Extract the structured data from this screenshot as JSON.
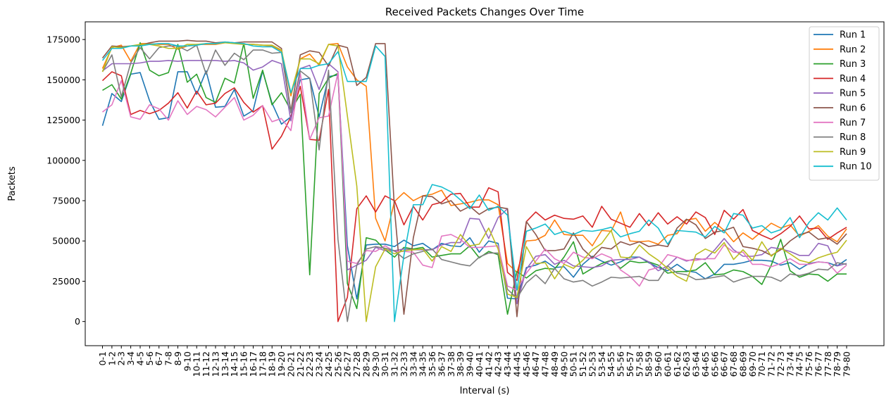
{
  "chart_data": {
    "type": "line",
    "title": "Received Packets Changes Over Time",
    "xlabel": "Interval (s)",
    "ylabel": "Packets",
    "ylim": [
      -15000,
      186000
    ],
    "yticks": [
      0,
      25000,
      50000,
      75000,
      100000,
      125000,
      150000,
      175000
    ],
    "grid": false,
    "legend_position": "top-right",
    "categories": [
      "0-1",
      "1-2",
      "2-3",
      "3-4",
      "4-5",
      "5-6",
      "6-7",
      "7-8",
      "8-9",
      "9-10",
      "10-11",
      "11-12",
      "12-13",
      "13-14",
      "14-15",
      "15-16",
      "16-17",
      "17-18",
      "18-19",
      "19-20",
      "20-21",
      "21-22",
      "22-23",
      "23-24",
      "24-25",
      "25-26",
      "26-27",
      "27-28",
      "28-29",
      "29-30",
      "30-31",
      "31-32",
      "32-33",
      "33-34",
      "34-35",
      "35-36",
      "36-37",
      "37-38",
      "38-39",
      "39-40",
      "40-41",
      "41-42",
      "42-43",
      "43-44",
      "44-45",
      "45-46",
      "46-47",
      "47-48",
      "48-49",
      "49-50",
      "50-51",
      "51-52",
      "52-53",
      "53-54",
      "54-55",
      "55-56",
      "56-57",
      "57-58",
      "58-59",
      "59-60",
      "60-61",
      "61-62",
      "62-63",
      "63-64",
      "64-65",
      "65-66",
      "66-67",
      "67-68",
      "68-69",
      "69-70",
      "70-71",
      "71-72",
      "72-73",
      "73-74",
      "74-75",
      "75-76",
      "76-77",
      "77-78",
      "78-79",
      "79-80"
    ],
    "series": [
      {
        "name": "Run 1",
        "color": "#1f77b4",
        "values": [
          121500,
          141500,
          136500,
          153500,
          154500,
          137000,
          125500,
          126500,
          155000,
          155000,
          141000,
          155500,
          133000,
          133500,
          144000,
          127500,
          131000,
          155500,
          135500,
          122500,
          127000,
          150000,
          151000,
          127000,
          152000,
          153000,
          47000,
          14000,
          47500,
          48000,
          48000,
          46500,
          50500,
          47000,
          48500,
          44500,
          48500,
          47000,
          46500,
          52000,
          43000,
          50000,
          48500,
          14500,
          14000,
          33500,
          35000,
          37500,
          33500,
          34000,
          27500,
          35500,
          40500,
          37500,
          35000,
          37000,
          40000,
          40000,
          36500,
          33500,
          31500,
          35500,
          31500,
          30500,
          26500,
          29500,
          35500,
          35500,
          36500,
          38000,
          38000,
          37500,
          35000,
          36500,
          32500,
          36000,
          37000,
          36500,
          34500,
          38500
        ]
      },
      {
        "name": "Run 2",
        "color": "#ff7f0e",
        "values": [
          157000,
          170000,
          171500,
          161500,
          172500,
          172500,
          172000,
          172000,
          169000,
          171000,
          172000,
          172000,
          172000,
          173000,
          173000,
          172000,
          172000,
          171500,
          171000,
          168000,
          140000,
          163000,
          166000,
          159000,
          172000,
          172500,
          158000,
          150000,
          146000,
          64000,
          50000,
          74500,
          80000,
          75000,
          78000,
          79000,
          81500,
          72000,
          73000,
          74000,
          75500,
          75500,
          72500,
          36000,
          30500,
          50000,
          50500,
          53500,
          63000,
          54000,
          53500,
          53500,
          47000,
          56500,
          56000,
          68000,
          50000,
          49500,
          50000,
          48000,
          53500,
          54500,
          63000,
          64000,
          56000,
          61500,
          56500,
          49500,
          55000,
          51000,
          56000,
          61000,
          58000,
          60000,
          53000,
          56000,
          59500,
          53000,
          49500,
          57500
        ]
      },
      {
        "name": "Run 3",
        "color": "#2ca02c",
        "values": [
          143500,
          147000,
          138000,
          154000,
          173000,
          156000,
          152500,
          154500,
          172000,
          148500,
          153500,
          139000,
          136000,
          151000,
          148000,
          172500,
          138500,
          156000,
          134500,
          142000,
          131000,
          141000,
          29000,
          141500,
          151000,
          154000,
          23500,
          8000,
          52000,
          50500,
          44500,
          40000,
          46000,
          45000,
          46000,
          40000,
          41000,
          42000,
          42000,
          47000,
          39500,
          43500,
          41500,
          4500,
          31000,
          27000,
          31500,
          33000,
          32500,
          40000,
          49500,
          29500,
          33000,
          36000,
          38000,
          33000,
          37500,
          36500,
          37000,
          35000,
          30000,
          31000,
          31000,
          32000,
          36500,
          29000,
          29500,
          32000,
          31000,
          28000,
          23000,
          35000,
          51000,
          31500,
          27500,
          29500,
          29000,
          25000,
          29500,
          29500
        ]
      },
      {
        "name": "Run 4",
        "color": "#d62728",
        "values": [
          149500,
          155000,
          152500,
          128500,
          131000,
          129000,
          131000,
          135500,
          142000,
          132500,
          143000,
          134500,
          135500,
          141500,
          145000,
          136000,
          130000,
          134000,
          107000,
          115000,
          127000,
          146000,
          113000,
          112500,
          144000,
          0,
          15000,
          70000,
          78000,
          68000,
          78000,
          75000,
          60000,
          71500,
          63000,
          72500,
          74000,
          79000,
          79500,
          71000,
          71000,
          83000,
          80500,
          30500,
          25500,
          62000,
          68000,
          63000,
          66000,
          64000,
          63500,
          65500,
          58500,
          71500,
          63500,
          61000,
          58500,
          67000,
          59500,
          67500,
          60500,
          65000,
          60500,
          68000,
          64500,
          54000,
          69000,
          63500,
          69500,
          56500,
          53500,
          51000,
          54500,
          59000,
          65500,
          57500,
          58000,
          51000,
          55000,
          58500
        ]
      },
      {
        "name": "Run 5",
        "color": "#9467bd",
        "values": [
          155500,
          160000,
          160000,
          160000,
          160500,
          161500,
          161500,
          162000,
          161500,
          162000,
          162000,
          162000,
          162000,
          161500,
          162000,
          160500,
          156000,
          158000,
          162000,
          160000,
          124500,
          157000,
          159000,
          144000,
          160000,
          155000,
          32000,
          35000,
          38000,
          46000,
          44000,
          44000,
          45000,
          44500,
          44500,
          44500,
          47500,
          49000,
          49000,
          64000,
          63500,
          51500,
          64500,
          70000,
          11000,
          32500,
          40500,
          41500,
          35500,
          38000,
          34500,
          34000,
          33500,
          34500,
          38000,
          38500,
          38500,
          40000,
          37000,
          31500,
          34500,
          40000,
          37500,
          39000,
          38500,
          44500,
          51500,
          44500,
          40500,
          40500,
          41500,
          46000,
          45000,
          43500,
          41000,
          41000,
          48500,
          47000,
          34500,
          36000
        ]
      },
      {
        "name": "Run 6",
        "color": "#8c564b",
        "values": [
          163500,
          171000,
          170500,
          171000,
          171500,
          173000,
          174000,
          174000,
          174000,
          174500,
          174000,
          174000,
          173000,
          173500,
          173000,
          173500,
          173500,
          173500,
          173500,
          169500,
          130500,
          165500,
          168000,
          167000,
          158500,
          171500,
          170000,
          146500,
          151500,
          172500,
          172500,
          69500,
          4500,
          52000,
          78000,
          77500,
          73000,
          75000,
          68500,
          71500,
          66500,
          70000,
          71000,
          70000,
          3000,
          62000,
          54000,
          44000,
          44000,
          45000,
          55000,
          45000,
          39500,
          46000,
          45000,
          49500,
          47500,
          49500,
          46500,
          47500,
          46500,
          58000,
          63500,
          60000,
          51500,
          55500,
          56500,
          58500,
          46500,
          45500,
          44000,
          41000,
          44500,
          50000,
          54000,
          55500,
          51000,
          52000,
          48000,
          54500
        ]
      },
      {
        "name": "Run 7",
        "color": "#e377c2",
        "values": [
          130000,
          134500,
          149500,
          127000,
          125500,
          134500,
          132000,
          125000,
          137000,
          128500,
          133500,
          131500,
          127000,
          133000,
          139000,
          125000,
          128000,
          134000,
          124000,
          126000,
          118500,
          154000,
          113000,
          126500,
          127500,
          154500,
          37500,
          36000,
          44000,
          43500,
          47000,
          43500,
          43500,
          43000,
          35000,
          33500,
          53000,
          54000,
          51000,
          46000,
          46000,
          46500,
          47000,
          22000,
          19500,
          30000,
          37500,
          45000,
          39000,
          36000,
          43000,
          40000,
          39000,
          42000,
          39500,
          32000,
          28000,
          22000,
          32000,
          33500,
          41500,
          40000,
          38000,
          38000,
          39000,
          39000,
          47500,
          43000,
          43000,
          35500,
          35500,
          34000,
          36000,
          39000,
          35500,
          35500,
          37000,
          36500,
          30000,
          35000
        ]
      },
      {
        "name": "Run 8",
        "color": "#7f7f7f",
        "values": [
          155000,
          165500,
          139500,
          160500,
          170000,
          163000,
          170000,
          171000,
          171000,
          168000,
          171500,
          153500,
          168500,
          159000,
          166500,
          162500,
          168500,
          168500,
          166500,
          167000,
          129500,
          155500,
          151000,
          106500,
          156000,
          51000,
          0,
          35000,
          45000,
          46500,
          45500,
          44000,
          39000,
          42000,
          43500,
          45000,
          38500,
          37000,
          35500,
          34500,
          40000,
          42500,
          42500,
          20000,
          14500,
          24000,
          29000,
          23500,
          33000,
          26500,
          24500,
          25500,
          22000,
          24500,
          27500,
          27000,
          27500,
          28000,
          25500,
          25500,
          34500,
          30000,
          29000,
          26000,
          26500,
          27500,
          28500,
          24500,
          26500,
          28000,
          28000,
          27500,
          25000,
          29500,
          28500,
          30000,
          32500,
          32000,
          36500,
          35500
        ]
      },
      {
        "name": "Run 9",
        "color": "#bcbd22",
        "values": [
          155000,
          170500,
          170000,
          171000,
          172000,
          172000,
          171000,
          169500,
          169500,
          172000,
          172000,
          172500,
          172500,
          173000,
          172500,
          172000,
          172000,
          171500,
          171500,
          168500,
          141500,
          163000,
          163000,
          160000,
          172000,
          171000,
          127500,
          84000,
          0,
          34000,
          45000,
          42000,
          44000,
          44500,
          45000,
          37500,
          46500,
          43500,
          54000,
          47000,
          48000,
          58000,
          45000,
          17000,
          15000,
          46500,
          36000,
          36500,
          26500,
          35500,
          33000,
          38000,
          44500,
          48500,
          56500,
          40000,
          39500,
          47500,
          42000,
          38000,
          33000,
          28000,
          25000,
          41500,
          45000,
          42500,
          49000,
          38500,
          44500,
          38000,
          49500,
          40500,
          45500,
          42000,
          38000,
          36500,
          39500,
          41500,
          43000,
          50500
        ]
      },
      {
        "name": "Run 10",
        "color": "#17becf",
        "values": [
          162000,
          169500,
          169500,
          171000,
          171000,
          172000,
          172500,
          172500,
          171000,
          171000,
          171500,
          172500,
          172500,
          173500,
          173000,
          172500,
          171000,
          170500,
          170500,
          167000,
          142000,
          157000,
          157000,
          159000,
          160000,
          167500,
          149000,
          149000,
          149000,
          171000,
          164500,
          0,
          41000,
          72500,
          72500,
          85000,
          83500,
          80500,
          75500,
          70000,
          78500,
          69000,
          71500,
          66000,
          19500,
          56000,
          58000,
          60500,
          54000,
          56000,
          54000,
          56500,
          56000,
          57000,
          58500,
          52500,
          54500,
          56000,
          63000,
          58000,
          48000,
          56500,
          56000,
          55500,
          52500,
          59000,
          55000,
          67000,
          66000,
          58000,
          59500,
          55000,
          57000,
          64500,
          52000,
          61500,
          67500,
          63000,
          70500,
          63000
        ]
      }
    ]
  }
}
